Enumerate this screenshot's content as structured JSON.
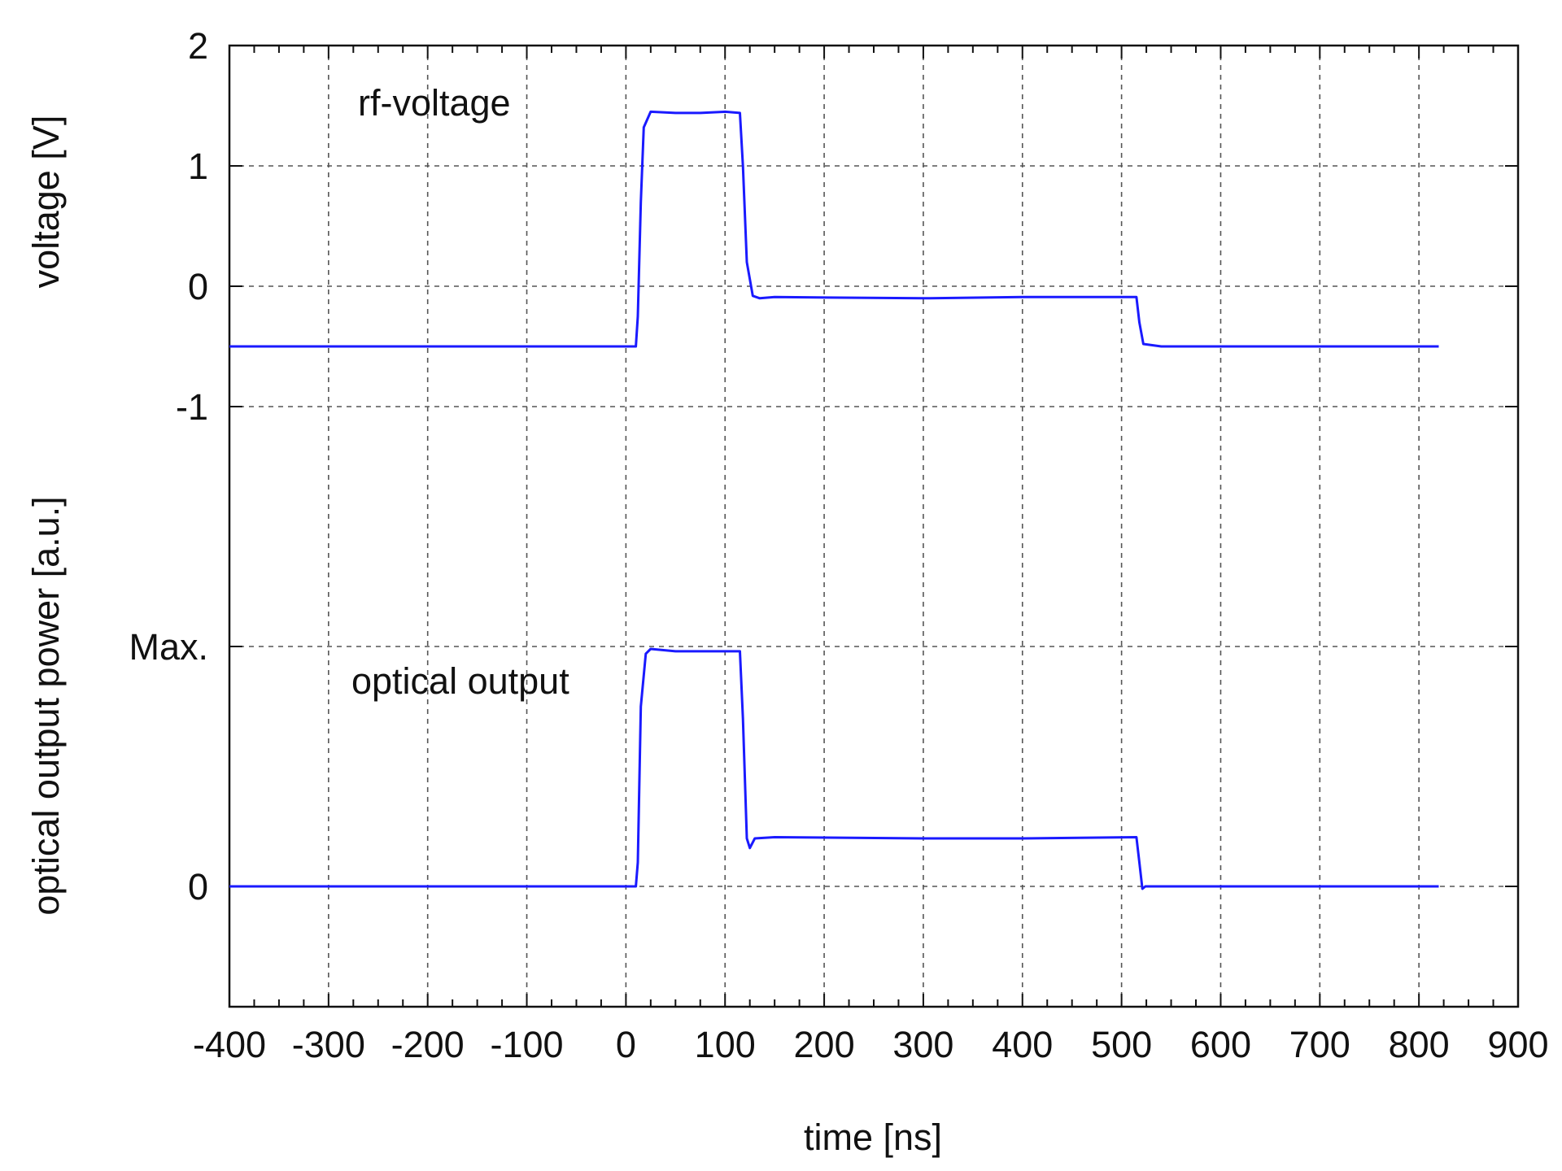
{
  "chart_data": {
    "type": "line",
    "xlabel": "time [ns]",
    "ylabel_top": "voltage [V]",
    "ylabel_bottom": "optical output power [a.u.]",
    "xlim": [
      -400,
      900
    ],
    "x_ticks": [
      -400,
      -300,
      -200,
      -100,
      0,
      100,
      200,
      300,
      400,
      500,
      600,
      700,
      800,
      900
    ],
    "x_tick_labels": [
      "-400",
      "-300",
      "-200",
      "-100",
      "0",
      "100",
      "200",
      "300",
      "400",
      "500",
      "600",
      "700",
      "800",
      "900"
    ],
    "y_tick_labels_voltage": [
      "2",
      "1",
      "0",
      "-1"
    ],
    "y_tick_labels_optical": [
      "Max.",
      "0"
    ],
    "grid": true,
    "line_color": "#1a1aff",
    "annotations": [
      {
        "text": "rf-voltage",
        "x": -130,
        "voltage": 1.5
      },
      {
        "text": "optical output",
        "x": -120,
        "optical": 0.87
      }
    ],
    "series": [
      {
        "name": "rf-voltage",
        "axis": "voltage [V]",
        "x": [
          -400,
          10,
          12,
          15,
          18,
          25,
          50,
          75,
          100,
          115,
          118,
          122,
          128,
          135,
          150,
          300,
          400,
          515,
          518,
          522,
          540,
          700,
          820
        ],
        "y": [
          -0.5,
          -0.5,
          -0.25,
          0.7,
          1.32,
          1.45,
          1.44,
          1.44,
          1.45,
          1.44,
          1.0,
          0.2,
          -0.08,
          -0.1,
          -0.09,
          -0.1,
          -0.09,
          -0.09,
          -0.3,
          -0.48,
          -0.5,
          -0.5,
          -0.5
        ]
      },
      {
        "name": "optical output",
        "axis": "optical output power [a.u.]",
        "x": [
          -400,
          10,
          12,
          15,
          20,
          25,
          50,
          75,
          100,
          115,
          118,
          122,
          125,
          130,
          150,
          300,
          400,
          515,
          518,
          521,
          524,
          540,
          700,
          820
        ],
        "y": [
          0,
          0,
          0.1,
          0.75,
          0.97,
          0.99,
          0.98,
          0.98,
          0.98,
          0.98,
          0.7,
          0.2,
          0.16,
          0.2,
          0.205,
          0.2,
          0.2,
          0.205,
          0.1,
          -0.01,
          0,
          0,
          0,
          0
        ]
      }
    ]
  }
}
